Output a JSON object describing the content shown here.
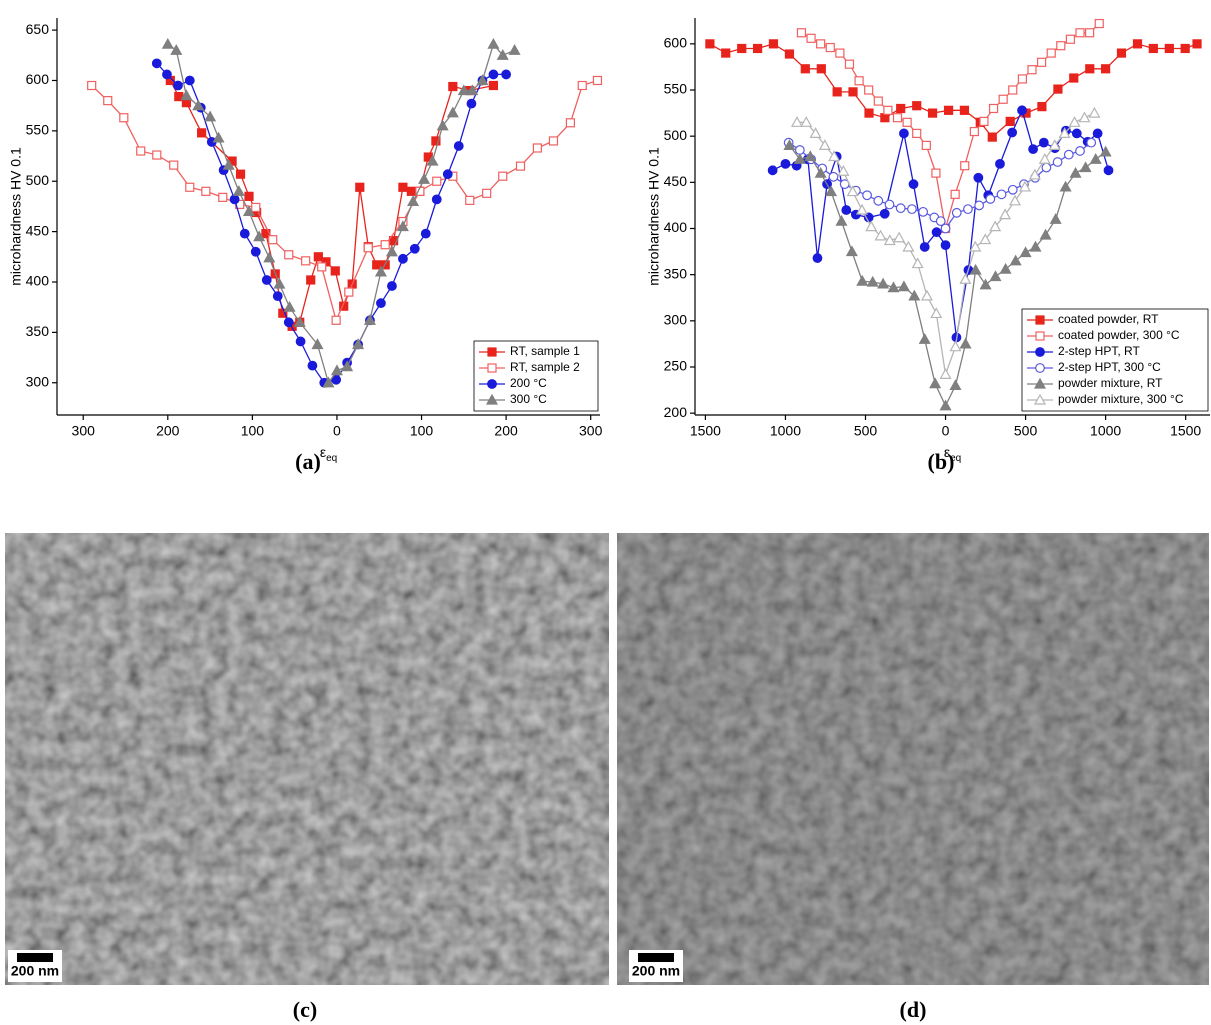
{
  "chart_data": [
    {
      "type": "line",
      "ylabel": "microhardness HV 0.1",
      "xlabel": "ε",
      "xlabel_subscript": "eq",
      "xlim": [
        -331,
        311
      ],
      "ylim": [
        268,
        662
      ],
      "xticks": [
        {
          "value": -300,
          "label": "300"
        },
        {
          "value": -200,
          "label": "200"
        },
        {
          "value": -100,
          "label": "100"
        },
        0,
        100,
        200,
        300
      ],
      "yticks": [
        300,
        350,
        400,
        450,
        500,
        550,
        600,
        650
      ],
      "grid": false,
      "legend": "lower right",
      "series": [
        {
          "name": "RT, sample 1",
          "color": "#e8231c",
          "marker": "square",
          "filled": true,
          "x": [
            -197,
            -187,
            -178,
            -160,
            -124,
            -114,
            -104,
            -95,
            -84,
            -73,
            -64,
            -53,
            -44,
            -31,
            -22,
            -13,
            -2,
            8,
            18,
            27,
            37,
            47,
            57,
            67,
            78,
            88,
            98,
            108,
            117,
            137,
            157,
            185
          ],
          "values": [
            600,
            584,
            578,
            548,
            520,
            507,
            485,
            469,
            448,
            408,
            369,
            356,
            360,
            402,
            425,
            420,
            411,
            376,
            398,
            494,
            435,
            417,
            417,
            441,
            494,
            490,
            490,
            524,
            540,
            594,
            590,
            595
          ]
        },
        {
          "name": "RT, sample 2",
          "color": "#f06060",
          "marker": "square",
          "filled": false,
          "x": [
            -290,
            -271,
            -252,
            -232,
            -213,
            -193,
            -174,
            -155,
            -135,
            -115,
            -96,
            -76,
            -57,
            -37,
            -18,
            -1,
            14,
            37,
            57,
            78,
            98,
            118,
            137,
            157,
            177,
            196,
            217,
            237,
            256,
            276,
            290,
            308
          ],
          "values": [
            595,
            580,
            563,
            530,
            526,
            516,
            494,
            490,
            484,
            477,
            474,
            442,
            427,
            421,
            415,
            362,
            390,
            434,
            437,
            460,
            490,
            500,
            505,
            481,
            488,
            505,
            515,
            533,
            540,
            558,
            595,
            600
          ]
        },
        {
          "name": "200 °C",
          "color": "#1a1adb",
          "marker": "circle",
          "filled": true,
          "x": [
            -213,
            -201,
            -188,
            -174,
            -161,
            -148,
            -134,
            -121,
            -109,
            -96,
            -83,
            -70,
            -57,
            -43,
            -29,
            -15,
            -1,
            12,
            25,
            39,
            52,
            65,
            78,
            92,
            105,
            118,
            131,
            144,
            159,
            172,
            185,
            200
          ],
          "values": [
            617,
            606,
            595,
            600,
            573,
            539,
            511,
            482,
            448,
            430,
            402,
            386,
            360,
            341,
            317,
            300,
            303,
            320,
            338,
            362,
            379,
            396,
            423,
            433,
            448,
            482,
            507,
            535,
            577,
            600,
            606,
            606
          ]
        },
        {
          "name": "300 °C",
          "color": "#7f7f7f",
          "marker": "triangle",
          "filled": true,
          "x": [
            -200,
            -190,
            -178,
            -164,
            -150,
            -140,
            -128,
            -116,
            -104,
            -92,
            -80,
            -68,
            -56,
            -44,
            -23,
            -10,
            0,
            12,
            25,
            39,
            52,
            65,
            78,
            90,
            103,
            113,
            125,
            137,
            150,
            160,
            172,
            185,
            196,
            210
          ],
          "values": [
            636,
            630,
            585,
            575,
            564,
            543,
            516,
            490,
            470,
            445,
            424,
            398,
            375,
            360,
            338,
            300,
            312,
            316,
            338,
            362,
            410,
            430,
            455,
            480,
            502,
            520,
            555,
            568,
            590,
            590,
            600,
            636,
            625,
            630
          ]
        }
      ]
    },
    {
      "type": "line",
      "ylabel": "microhardness HV 0.1",
      "xlabel": "ε",
      "xlabel_subscript": "eq",
      "xlim": [
        -1565,
        1652
      ],
      "ylim": [
        198,
        628
      ],
      "xticks": [
        {
          "value": -1500,
          "label": "1500"
        },
        {
          "value": -1000,
          "label": "1000"
        },
        {
          "value": -500,
          "label": "500"
        },
        0,
        500,
        1000,
        1500
      ],
      "yticks": [
        200,
        250,
        300,
        350,
        400,
        450,
        500,
        550,
        600
      ],
      "grid": false,
      "legend": "lower right",
      "series": [
        {
          "name": "coated powder, RT",
          "color": "#e8231c",
          "marker": "square",
          "filled": true,
          "x": [
            -1472,
            -1373,
            -1273,
            -1174,
            -1075,
            -975,
            -876,
            -776,
            -677,
            -578,
            -478,
            -379,
            -280,
            -180,
            -81,
            19,
            118,
            217,
            292,
            404,
            503,
            602,
            702,
            801,
            901,
            1000,
            1099,
            1199,
            1298,
            1398,
            1497,
            1571
          ],
          "values": [
            600,
            590,
            595,
            595,
            600,
            589,
            573,
            573,
            548,
            548,
            525,
            520,
            530,
            533,
            525,
            528,
            528,
            515,
            499,
            516,
            525,
            532,
            551,
            563,
            573,
            573,
            590,
            600,
            595,
            595,
            595,
            600
          ]
        },
        {
          "name": "coated powder, 300 °C",
          "color": "#f06060",
          "marker": "square",
          "filled": false,
          "x": [
            -900,
            -840,
            -780,
            -720,
            -660,
            -600,
            -540,
            -480,
            -420,
            -360,
            -300,
            -240,
            -180,
            -120,
            -60,
            0,
            60,
            120,
            180,
            240,
            300,
            360,
            420,
            480,
            540,
            600,
            660,
            720,
            780,
            840,
            900,
            960
          ],
          "values": [
            612,
            606,
            600,
            596,
            590,
            578,
            560,
            550,
            538,
            528,
            520,
            515,
            503,
            490,
            460,
            400,
            437,
            468,
            505,
            516,
            530,
            540,
            550,
            562,
            572,
            580,
            590,
            598,
            605,
            612,
            612,
            622
          ]
        },
        {
          "name": "2-step HPT, RT",
          "color": "#1a1adb",
          "marker": "circle",
          "filled": true,
          "x": [
            -1080,
            -1000,
            -930,
            -860,
            -800,
            -740,
            -680,
            -620,
            -560,
            -480,
            -380,
            -260,
            -200,
            -130,
            -56,
            0,
            68,
            143,
            205,
            267,
            340,
            416,
            478,
            547,
            614,
            683,
            752,
            820,
            888,
            950,
            1018
          ],
          "values": [
            463,
            470,
            468,
            475,
            368,
            448,
            478,
            420,
            415,
            412,
            416,
            503,
            448,
            380,
            396,
            382,
            282,
            355,
            455,
            436,
            470,
            504,
            528,
            486,
            493,
            487,
            506,
            503,
            494,
            503,
            463
          ]
        },
        {
          "name": "2-step HPT, 300 °C",
          "color": "#5a5ae0",
          "marker": "circle",
          "filled": false,
          "x": [
            -980,
            -910,
            -840,
            -770,
            -700,
            -630,
            -560,
            -490,
            -420,
            -350,
            -280,
            -210,
            -140,
            -70,
            -30,
            0,
            70,
            140,
            210,
            280,
            350,
            420,
            490,
            560,
            630,
            700,
            770,
            840,
            910
          ],
          "values": [
            493,
            485,
            475,
            465,
            456,
            448,
            441,
            436,
            430,
            426,
            422,
            421,
            418,
            412,
            408,
            400,
            417,
            421,
            425,
            432,
            437,
            442,
            448,
            455,
            466,
            472,
            480,
            484,
            493
          ]
        },
        {
          "name": "powder mixture, RT",
          "color": "#7f7f7f",
          "marker": "triangle",
          "filled": true,
          "x": [
            -975,
            -910,
            -845,
            -780,
            -715,
            -650,
            -585,
            -520,
            -455,
            -390,
            -325,
            -260,
            -195,
            -130,
            -65,
            0,
            62,
            125,
            188,
            250,
            312,
            375,
            438,
            500,
            562,
            625,
            688,
            750,
            812,
            875,
            938,
            1000
          ],
          "values": [
            490,
            475,
            478,
            460,
            440,
            408,
            375,
            343,
            342,
            340,
            336,
            337,
            327,
            280,
            232,
            208,
            230,
            275,
            355,
            339,
            348,
            356,
            365,
            374,
            380,
            393,
            410,
            445,
            460,
            466,
            475,
            483
          ]
        },
        {
          "name": "powder mixture, 300 °C",
          "color": "#b5b5b5",
          "marker": "triangle",
          "filled": false,
          "x": [
            -928,
            -870,
            -812,
            -754,
            -696,
            -638,
            -580,
            -522,
            -464,
            -406,
            -348,
            -290,
            -232,
            -174,
            -116,
            -58,
            0,
            62,
            124,
            186,
            248,
            310,
            372,
            434,
            496,
            558,
            620,
            682,
            744,
            806,
            868,
            930
          ],
          "values": [
            515,
            515,
            503,
            490,
            478,
            462,
            440,
            420,
            402,
            392,
            387,
            390,
            380,
            362,
            327,
            308,
            242,
            272,
            345,
            380,
            388,
            402,
            415,
            430,
            445,
            458,
            475,
            490,
            503,
            515,
            520,
            525
          ]
        }
      ]
    }
  ],
  "figure_labels": [
    "(a)",
    "(b)",
    "(c)",
    "(d)"
  ],
  "micrographs": [
    {
      "scale_bar": "200 nm"
    },
    {
      "scale_bar": "200 nm"
    }
  ]
}
